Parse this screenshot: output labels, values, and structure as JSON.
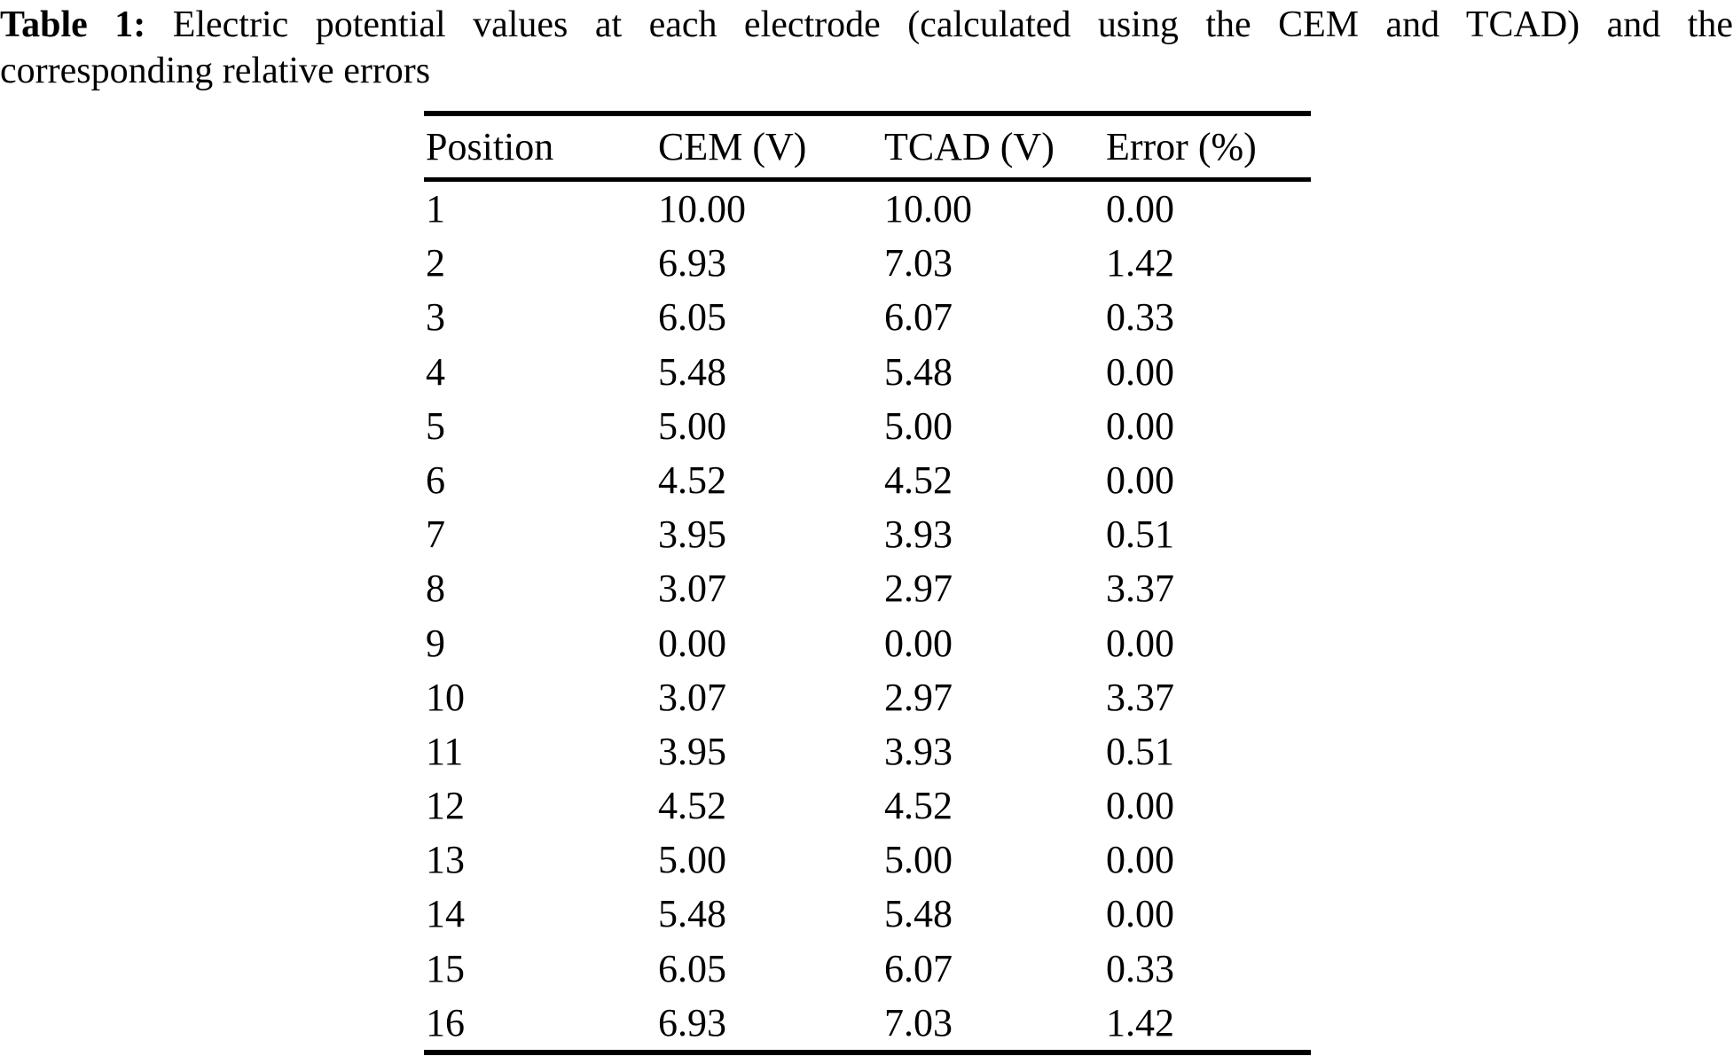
{
  "page": {
    "background_color": "#ffffff",
    "text_color": "#000000"
  },
  "caption": {
    "label": "Table 1:",
    "line1": "Electric potential values at each electrode (calculated using the CEM and TCAD) and the",
    "line2": "corresponding relative errors",
    "full_text": "Table 1: Electric potential values at each electrode (calculated using the CEM and TCAD) and the corresponding relative errors"
  },
  "table": {
    "columns": [
      "Position",
      "CEM (V)",
      "TCAD (V)",
      "Error (%)"
    ],
    "rows": [
      {
        "position": "1",
        "cem": "10.00",
        "tcad": "10.00",
        "error": "0.00"
      },
      {
        "position": "2",
        "cem": "6.93",
        "tcad": "7.03",
        "error": "1.42"
      },
      {
        "position": "3",
        "cem": "6.05",
        "tcad": "6.07",
        "error": "0.33"
      },
      {
        "position": "4",
        "cem": "5.48",
        "tcad": "5.48",
        "error": "0.00"
      },
      {
        "position": "5",
        "cem": "5.00",
        "tcad": "5.00",
        "error": "0.00"
      },
      {
        "position": "6",
        "cem": "4.52",
        "tcad": "4.52",
        "error": "0.00"
      },
      {
        "position": "7",
        "cem": "3.95",
        "tcad": "3.93",
        "error": "0.51"
      },
      {
        "position": "8",
        "cem": "3.07",
        "tcad": "2.97",
        "error": "3.37"
      },
      {
        "position": "9",
        "cem": "0.00",
        "tcad": "0.00",
        "error": "0.00"
      },
      {
        "position": "10",
        "cem": "3.07",
        "tcad": "2.97",
        "error": "3.37"
      },
      {
        "position": "11",
        "cem": "3.95",
        "tcad": "3.93",
        "error": "0.51"
      },
      {
        "position": "12",
        "cem": "4.52",
        "tcad": "4.52",
        "error": "0.00"
      },
      {
        "position": "13",
        "cem": "5.00",
        "tcad": "5.00",
        "error": "0.00"
      },
      {
        "position": "14",
        "cem": "5.48",
        "tcad": "5.48",
        "error": "0.00"
      },
      {
        "position": "15",
        "cem": "6.05",
        "tcad": "6.07",
        "error": "0.33"
      },
      {
        "position": "16",
        "cem": "6.93",
        "tcad": "7.03",
        "error": "1.42"
      }
    ]
  }
}
